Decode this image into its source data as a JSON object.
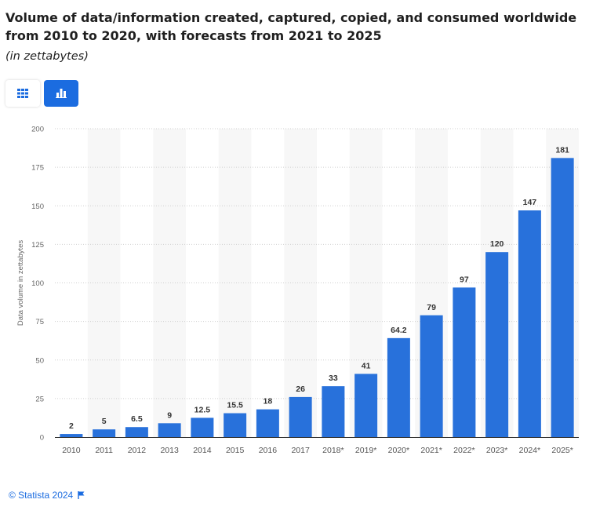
{
  "title": "Volume of data/information created, captured, copied, and consumed worldwide from 2010 to 2020, with forecasts from 2021 to 2025",
  "subtitle": "(in zettabytes)",
  "toggles": {
    "table_icon": "table-icon",
    "chart_icon": "bar-chart-icon",
    "active": "chart"
  },
  "footer": {
    "copyright": "© Statista 2024",
    "flag_icon": "flag-icon"
  },
  "colors": {
    "bar": "#2871db",
    "accent": "#1b6ce0"
  },
  "chart_data": {
    "type": "bar",
    "categories": [
      "2010",
      "2011",
      "2012",
      "2013",
      "2014",
      "2015",
      "2016",
      "2017",
      "2018*",
      "2019*",
      "2020*",
      "2021*",
      "2022*",
      "2023*",
      "2024*",
      "2025*"
    ],
    "values": [
      2,
      5,
      6.5,
      9,
      12.5,
      15.5,
      18,
      26,
      33,
      41,
      64.2,
      79,
      97,
      120,
      147,
      181
    ],
    "data_labels": [
      "2",
      "5",
      "6.5",
      "9",
      "12.5",
      "15.5",
      "18",
      "26",
      "33",
      "41",
      "64.2",
      "79",
      "97",
      "120",
      "147",
      "181"
    ],
    "ylabel": "Data volume in zettabytes",
    "xlabel": "",
    "ylim": [
      0,
      200
    ],
    "yticks": [
      0,
      25,
      50,
      75,
      100,
      125,
      150,
      175,
      200
    ],
    "grid": true,
    "alternating_column_bands": true
  }
}
